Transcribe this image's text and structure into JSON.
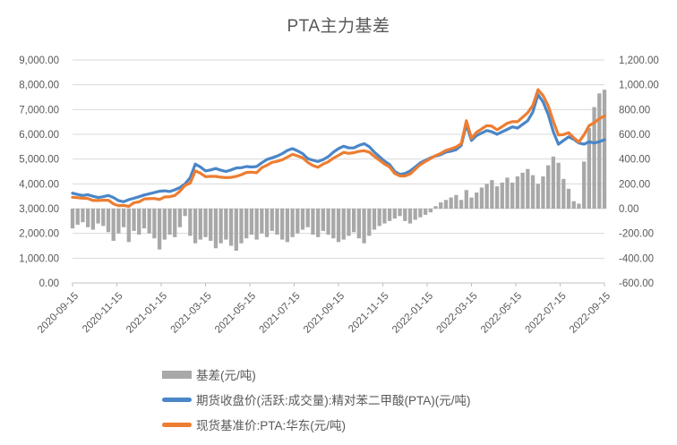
{
  "title": "PTA主力基差",
  "colors": {
    "grid": "#D9D9D9",
    "axis_line": "#BFBFBF",
    "axis_text": "#595959",
    "title_text": "#595959"
  },
  "chart_data": {
    "type": "combo",
    "title": "PTA主力基差",
    "grid": true,
    "legend_position": "bottom-left",
    "x_ticks": [
      "2020-09-15",
      "2020-11-15",
      "2021-01-15",
      "2021-03-15",
      "2021-05-15",
      "2021-07-15",
      "2021-09-15",
      "2021-11-15",
      "2022-01-15",
      "2022-03-15",
      "2022-05-15",
      "2022-07-15",
      "2022-09-15"
    ],
    "left_axis": {
      "min": 0,
      "max": 9000,
      "step": 1000,
      "ticks": [
        "9,000.00",
        "8,000.00",
        "7,000.00",
        "6,000.00",
        "5,000.00",
        "4,000.00",
        "3,000.00",
        "2,000.00",
        "1,000.00",
        "0.00"
      ]
    },
    "right_axis": {
      "min": -600,
      "max": 1200,
      "step": 200,
      "ticks": [
        "1,200.00",
        "1,000.00",
        "800.00",
        "600.00",
        "400.00",
        "200.00",
        "0.00",
        "-200.00",
        "-400.00",
        "-600.00"
      ]
    },
    "dates": [
      "2020-09-15",
      "2020-09-22",
      "2020-09-29",
      "2020-10-06",
      "2020-10-13",
      "2020-10-20",
      "2020-10-27",
      "2020-11-03",
      "2020-11-10",
      "2020-11-17",
      "2020-11-24",
      "2020-12-01",
      "2020-12-08",
      "2020-12-15",
      "2020-12-22",
      "2020-12-29",
      "2021-01-05",
      "2021-01-12",
      "2021-01-19",
      "2021-01-26",
      "2021-02-02",
      "2021-02-09",
      "2021-02-16",
      "2021-02-23",
      "2021-03-02",
      "2021-03-09",
      "2021-03-16",
      "2021-03-23",
      "2021-03-30",
      "2021-04-06",
      "2021-04-13",
      "2021-04-20",
      "2021-04-27",
      "2021-05-04",
      "2021-05-11",
      "2021-05-18",
      "2021-05-25",
      "2021-06-01",
      "2021-06-08",
      "2021-06-15",
      "2021-06-22",
      "2021-06-29",
      "2021-07-06",
      "2021-07-13",
      "2021-07-20",
      "2021-07-27",
      "2021-08-03",
      "2021-08-10",
      "2021-08-17",
      "2021-08-24",
      "2021-08-31",
      "2021-09-07",
      "2021-09-14",
      "2021-09-21",
      "2021-09-28",
      "2021-10-05",
      "2021-10-12",
      "2021-10-19",
      "2021-10-26",
      "2021-11-02",
      "2021-11-09",
      "2021-11-16",
      "2021-11-23",
      "2021-11-30",
      "2021-12-07",
      "2021-12-14",
      "2021-12-21",
      "2021-12-28",
      "2022-01-04",
      "2022-01-11",
      "2022-01-18",
      "2022-01-25",
      "2022-02-01",
      "2022-02-08",
      "2022-02-15",
      "2022-02-22",
      "2022-03-01",
      "2022-03-08",
      "2022-03-15",
      "2022-03-22",
      "2022-03-29",
      "2022-04-05",
      "2022-04-12",
      "2022-04-19",
      "2022-04-26",
      "2022-05-03",
      "2022-05-10",
      "2022-05-17",
      "2022-05-24",
      "2022-05-31",
      "2022-06-07",
      "2022-06-14",
      "2022-06-21",
      "2022-06-28",
      "2022-07-05",
      "2022-07-12",
      "2022-07-19",
      "2022-07-26",
      "2022-08-02",
      "2022-08-09",
      "2022-08-16",
      "2022-08-23",
      "2022-08-30",
      "2022-09-06",
      "2022-09-13"
    ],
    "series": [
      {
        "name": "基差(元/吨)",
        "type": "bar",
        "axis": "right",
        "color": "#A8A8A8",
        "values": [
          -160,
          -130,
          -110,
          -150,
          -170,
          -120,
          -140,
          -190,
          -260,
          -200,
          -150,
          -270,
          -180,
          -210,
          -160,
          -200,
          -240,
          -330,
          -250,
          -210,
          -230,
          -150,
          -60,
          -220,
          -280,
          -250,
          -230,
          -260,
          -320,
          -280,
          -250,
          -300,
          -340,
          -280,
          -240,
          -210,
          -250,
          -200,
          -230,
          -180,
          -210,
          -250,
          -270,
          -230,
          -200,
          -170,
          -150,
          -210,
          -230,
          -180,
          -210,
          -240,
          -270,
          -250,
          -220,
          -190,
          -240,
          -280,
          -220,
          -170,
          -140,
          -120,
          -100,
          -80,
          -60,
          -100,
          -120,
          -90,
          -70,
          -50,
          -30,
          20,
          50,
          70,
          90,
          110,
          70,
          150,
          90,
          130,
          170,
          200,
          230,
          180,
          210,
          250,
          210,
          260,
          290,
          320,
          270,
          200,
          260,
          350,
          420,
          370,
          240,
          160,
          60,
          40,
          380,
          650,
          820,
          930,
          960
        ]
      },
      {
        "name": "期货收盘价(活跃:成交量):精对苯二甲酸(PTA)(元/吨)",
        "type": "line",
        "axis": "left",
        "color": "#4A86C8",
        "values": [
          3620,
          3570,
          3530,
          3560,
          3500,
          3450,
          3480,
          3530,
          3450,
          3320,
          3280,
          3360,
          3420,
          3480,
          3550,
          3600,
          3650,
          3700,
          3720,
          3690,
          3760,
          3850,
          4000,
          4250,
          4800,
          4680,
          4520,
          4560,
          4620,
          4550,
          4500,
          4560,
          4640,
          4650,
          4700,
          4680,
          4700,
          4850,
          4980,
          5050,
          5120,
          5220,
          5350,
          5420,
          5330,
          5220,
          5020,
          4950,
          4900,
          4980,
          5100,
          5280,
          5420,
          5520,
          5450,
          5450,
          5550,
          5620,
          5500,
          5280,
          5100,
          4920,
          4780,
          4500,
          4380,
          4420,
          4520,
          4680,
          4850,
          4950,
          5050,
          5120,
          5180,
          5280,
          5320,
          5380,
          5550,
          6400,
          5750,
          5950,
          6050,
          6150,
          6100,
          6000,
          6100,
          6200,
          6300,
          6250,
          6400,
          6550,
          6900,
          7600,
          7300,
          6800,
          6100,
          5600,
          5750,
          5900,
          5800,
          5650,
          5600,
          5700,
          5650,
          5700,
          5780
        ]
      },
      {
        "name": "现货基准价:PTA:华东(元/吨)",
        "type": "line",
        "axis": "left",
        "color": "#ED7D31",
        "values": [
          3460,
          3440,
          3420,
          3410,
          3330,
          3330,
          3340,
          3340,
          3190,
          3120,
          3130,
          3090,
          3240,
          3270,
          3390,
          3400,
          3410,
          3370,
          3470,
          3480,
          3530,
          3700,
          3940,
          4030,
          4520,
          4430,
          4290,
          4300,
          4300,
          4270,
          4250,
          4260,
          4300,
          4370,
          4460,
          4470,
          4450,
          4650,
          4750,
          4870,
          4910,
          4970,
          5080,
          5190,
          5130,
          5050,
          4870,
          4740,
          4670,
          4800,
          4890,
          5040,
          5150,
          5270,
          5230,
          5260,
          5310,
          5340,
          5280,
          5110,
          4960,
          4800,
          4680,
          4420,
          4320,
          4320,
          4400,
          4590,
          4780,
          4900,
          5020,
          5140,
          5230,
          5350,
          5410,
          5490,
          5620,
          6550,
          5840,
          6080,
          6220,
          6350,
          6330,
          6180,
          6310,
          6450,
          6510,
          6510,
          6690,
          6870,
          7170,
          7800,
          7560,
          7150,
          6520,
          5970,
          5990,
          6060,
          5860,
          5690,
          5980,
          6350,
          6470,
          6630,
          6740
        ]
      }
    ]
  }
}
